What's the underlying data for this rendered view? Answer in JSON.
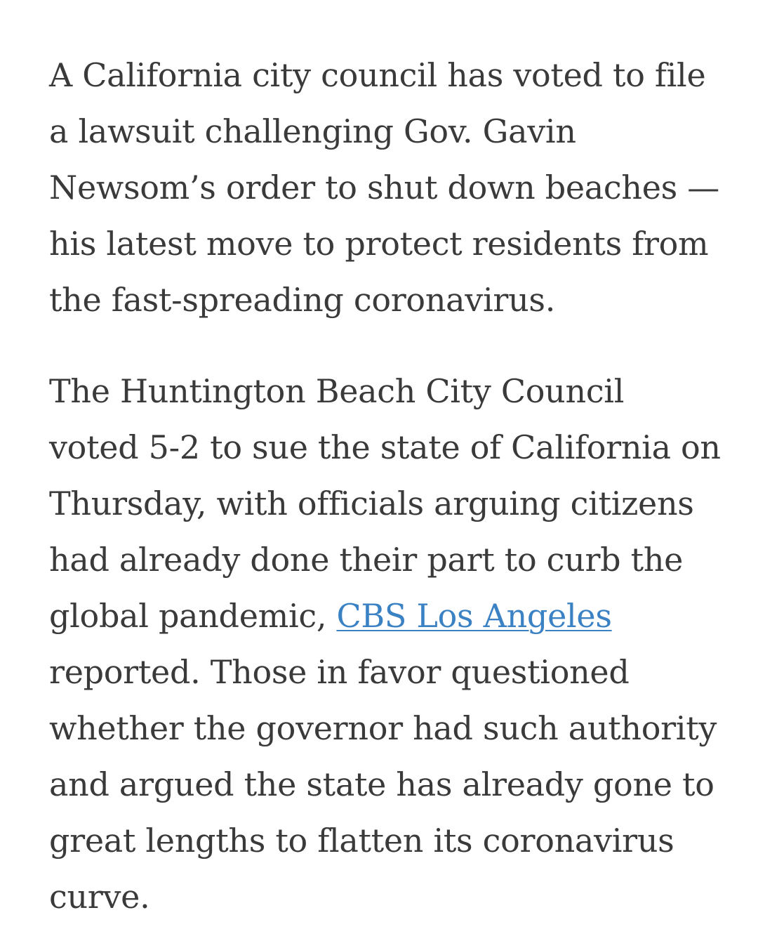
{
  "article": {
    "paragraph_1": "A California city council has voted to file a lawsuit challenging Gov. Gavin Newsom’s order to shut down beaches — his latest move to protect residents from the fast-spreading coronavirus.",
    "paragraph_2": {
      "before_link": "The Huntington Beach City Council voted 5-2 to sue the state of California on Thursday, with officials arguing citizens had already done their part to curb the global pandemic, ",
      "link_text": "CBS Los Angeles",
      "after_link": " reported. Those in favor questioned whether the governor had such authority and argued the state has already gone to great lengths to flatten its coronavirus curve."
    }
  },
  "colors": {
    "text": "#3a3a3a",
    "link": "#3b82c4",
    "background": "#ffffff"
  }
}
